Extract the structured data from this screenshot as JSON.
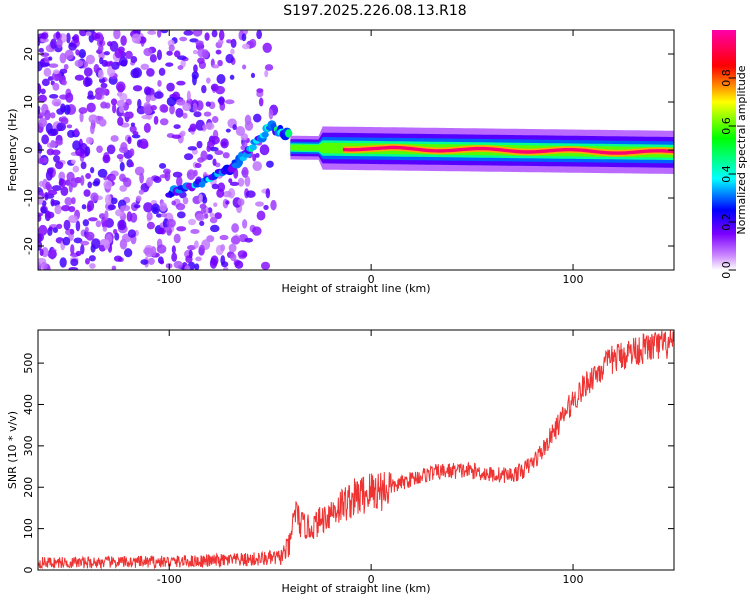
{
  "title": "S197.2025.226.08.13.R18",
  "chart_data": [
    {
      "type": "heatmap",
      "xlabel": "Height of straight line (km)",
      "ylabel": "Frequency (Hz)",
      "xlim": [
        -165,
        150
      ],
      "ylim": [
        -25,
        25
      ],
      "xticks": [
        -100,
        0,
        100
      ],
      "yticks": [
        -20,
        -10,
        0,
        10,
        20
      ],
      "colorbar": {
        "label": "Normalized spectral amplitude",
        "range": [
          0,
          1
        ],
        "ticks": [
          0.0,
          0.2,
          0.4,
          0.6,
          0.8
        ],
        "colormap": "hsv",
        "colors": [
          "#ffffff",
          "#cc88ff",
          "#7b00ff",
          "#0000ff",
          "#00ffff",
          "#00ff00",
          "#ffff00",
          "#ff0000",
          "#ff00aa"
        ]
      },
      "features": {
        "noise_region_x": [
          -165,
          -50
        ],
        "diagonal_signal": {
          "x": [
            -100,
            -85,
            -70,
            -60,
            -50,
            -40
          ],
          "y": [
            -9,
            -7,
            -4,
            0,
            5,
            3
          ]
        },
        "stable_line": {
          "x": [
            -40,
            150
          ],
          "y": [
            0.5,
            -0.5
          ],
          "peak_amplitude": 0.95
        }
      },
      "grid": false
    },
    {
      "type": "line",
      "xlabel": "Height of straight line (km)",
      "ylabel": "SNR (10 * v/v)",
      "xlim": [
        -165,
        150
      ],
      "ylim": [
        0,
        580
      ],
      "xticks": [
        -100,
        0,
        100
      ],
      "yticks": [
        0,
        100,
        200,
        300,
        400,
        500
      ],
      "color": "#ee3333",
      "series": [
        {
          "x": [
            -165,
            -140,
            -100,
            -80,
            -60,
            -45,
            -40,
            -38,
            -35,
            -30,
            -25,
            -20,
            -10,
            0,
            10,
            20,
            30,
            40,
            50,
            60,
            70,
            75,
            80,
            85,
            90,
            95,
            100,
            105,
            110,
            115,
            120,
            130,
            140,
            150
          ],
          "y": [
            18,
            18,
            20,
            22,
            25,
            30,
            60,
            150,
            110,
            100,
            120,
            140,
            170,
            190,
            200,
            220,
            235,
            240,
            240,
            230,
            230,
            240,
            260,
            290,
            330,
            370,
            410,
            440,
            470,
            490,
            510,
            530,
            540,
            545
          ]
        }
      ],
      "grid": false
    }
  ]
}
